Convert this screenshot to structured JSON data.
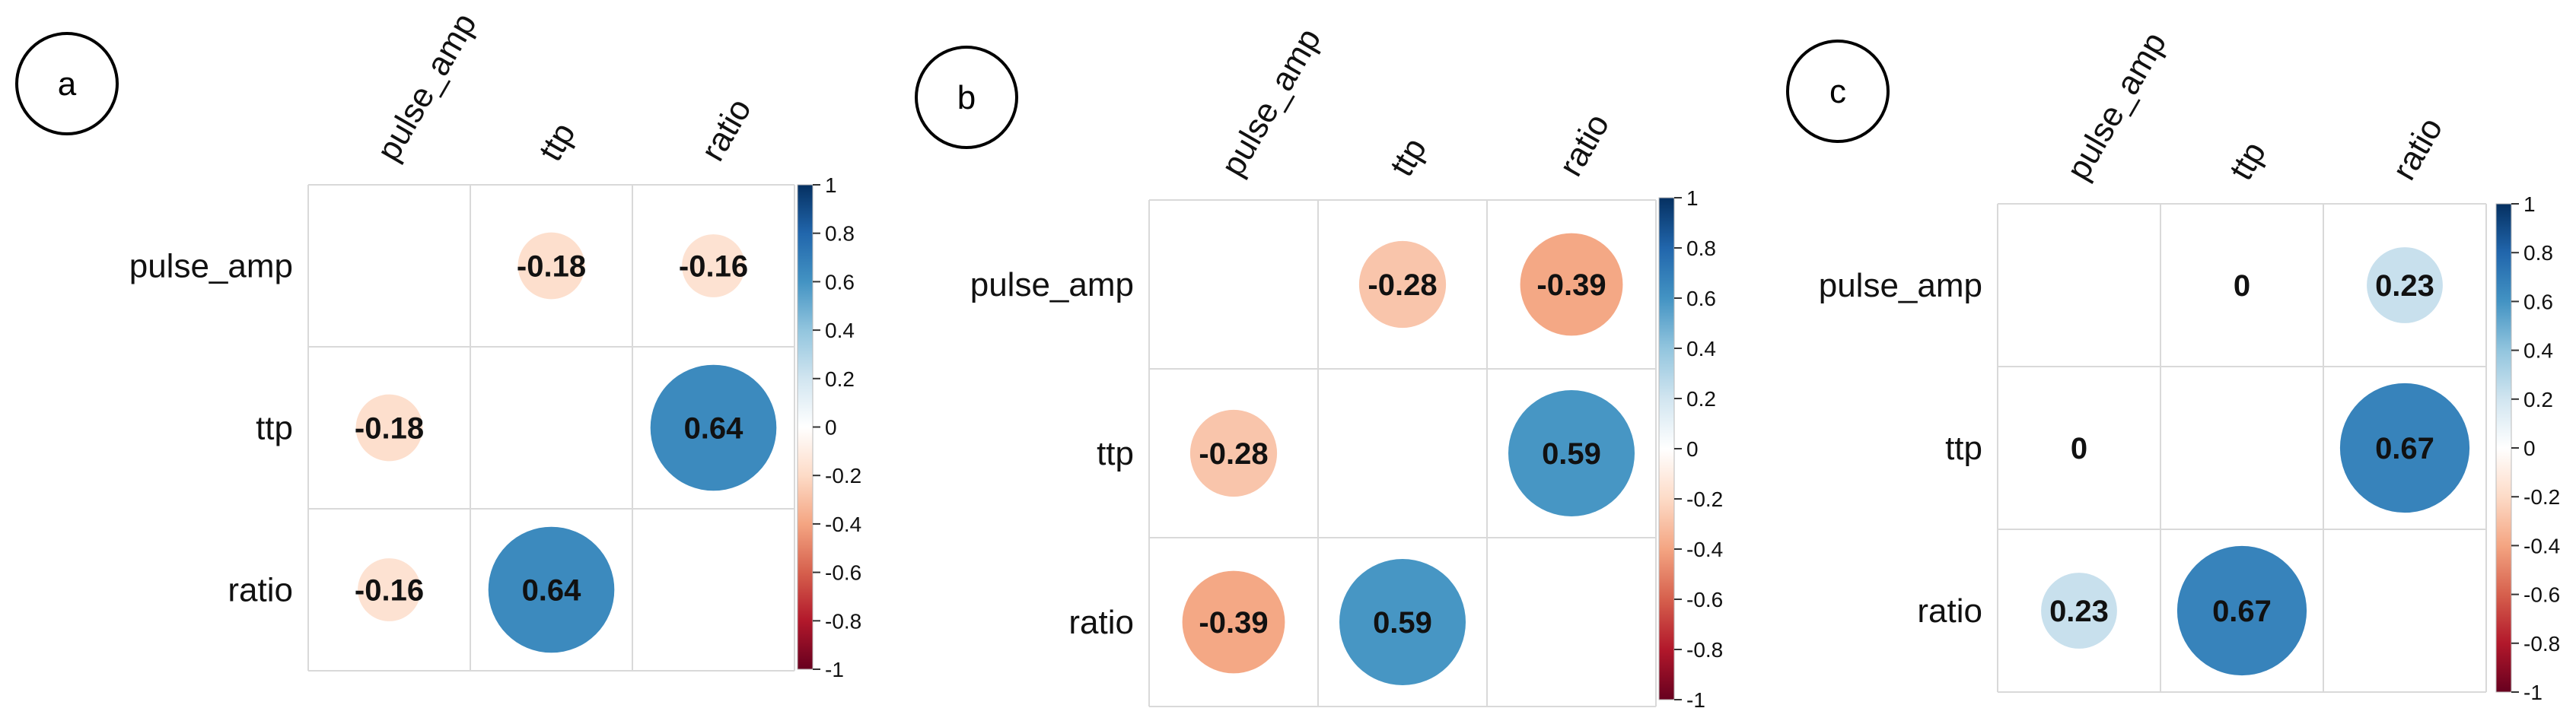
{
  "chart_data": [
    {
      "type": "heatmap",
      "panel_label": "a",
      "variables": [
        "pulse_amp",
        "ttp",
        "ratio"
      ],
      "matrix": [
        [
          null,
          -0.18,
          -0.16
        ],
        [
          -0.18,
          null,
          0.64
        ],
        [
          -0.16,
          0.64,
          null
        ]
      ],
      "value_labels": [
        [
          "",
          "-0.18",
          "-0.16"
        ],
        [
          "-0.18",
          "",
          "0.64"
        ],
        [
          "-0.16",
          "0.64",
          ""
        ]
      ],
      "colorbar": {
        "range": [
          -1,
          1
        ],
        "ticks": [
          "1",
          "0.8",
          "0.6",
          "0.4",
          "0.2",
          "0",
          "-0.2",
          "-0.4",
          "-0.6",
          "-0.8",
          "-1"
        ]
      }
    },
    {
      "type": "heatmap",
      "panel_label": "b",
      "variables": [
        "pulse_amp",
        "ttp",
        "ratio"
      ],
      "matrix": [
        [
          null,
          -0.28,
          -0.39
        ],
        [
          -0.28,
          null,
          0.59
        ],
        [
          -0.39,
          0.59,
          null
        ]
      ],
      "value_labels": [
        [
          "",
          "-0.28",
          "-0.39"
        ],
        [
          "-0.28",
          "",
          "0.59"
        ],
        [
          "-0.39",
          "0.59",
          ""
        ]
      ],
      "colorbar": {
        "range": [
          -1,
          1
        ],
        "ticks": [
          "1",
          "0.8",
          "0.6",
          "0.4",
          "0.2",
          "0",
          "-0.2",
          "-0.4",
          "-0.6",
          "-0.8",
          "-1"
        ]
      }
    },
    {
      "type": "heatmap",
      "panel_label": "c",
      "variables": [
        "pulse_amp",
        "ttp",
        "ratio"
      ],
      "matrix": [
        [
          null,
          0,
          0.23
        ],
        [
          0,
          null,
          0.67
        ],
        [
          0.23,
          0.67,
          null
        ]
      ],
      "value_labels": [
        [
          "",
          "0",
          "0.23"
        ],
        [
          "0",
          "",
          "0.67"
        ],
        [
          "0.23",
          "0.67",
          ""
        ]
      ],
      "colorbar": {
        "range": [
          -1,
          1
        ],
        "ticks": [
          "1",
          "0.8",
          "0.6",
          "0.4",
          "0.2",
          "0",
          "-0.2",
          "-0.4",
          "-0.6",
          "-0.8",
          "-1"
        ]
      }
    }
  ],
  "colors": {
    "scale": [
      "#67001f",
      "#b2182b",
      "#d6604d",
      "#f4a582",
      "#fddbc7",
      "#ffffff",
      "#d1e5f0",
      "#92c5de",
      "#4393c3",
      "#2166ac",
      "#053061"
    ],
    "grid": "#d9d9d9",
    "text": "#111111"
  }
}
